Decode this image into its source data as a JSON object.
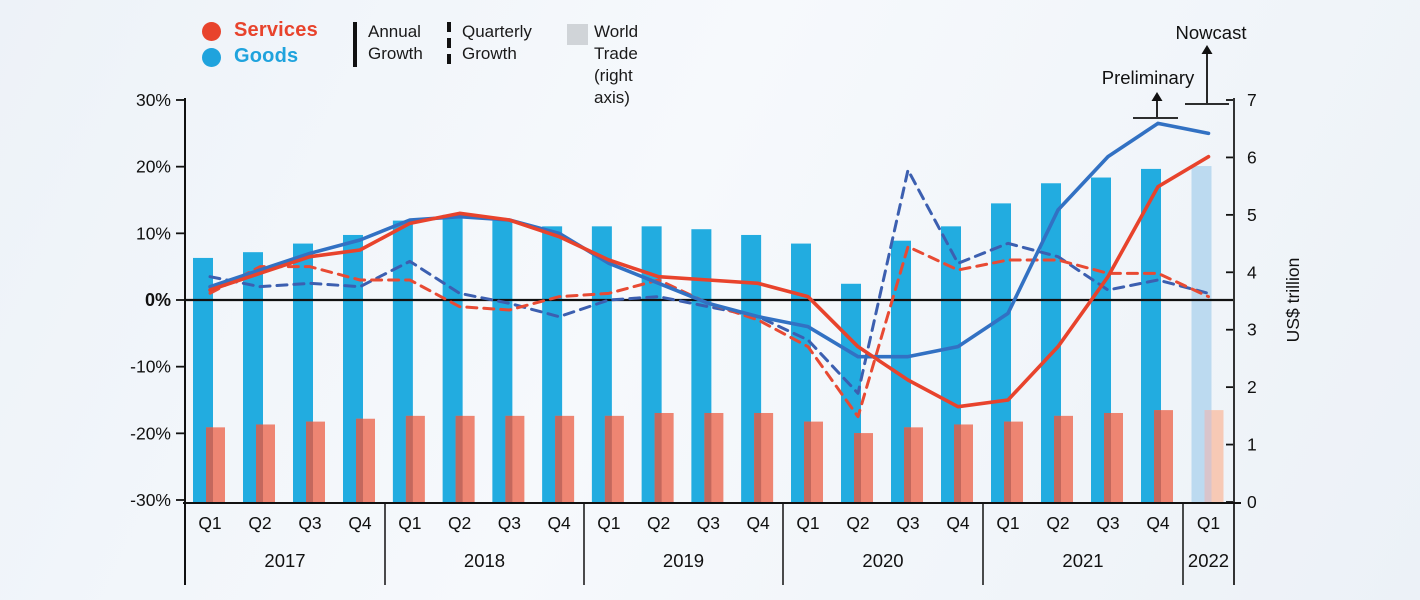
{
  "legend": {
    "services": "Services",
    "goods": "Goods",
    "annual_line1": "Annual",
    "annual_line2": "Growth",
    "quarterly_line1": "Quarterly",
    "quarterly_line2": "Growth",
    "world_line1": "World Trade",
    "world_line2": "(right axis)"
  },
  "annotations": {
    "preliminary": "Preliminary",
    "nowcast": "Nowcast"
  },
  "axes": {
    "left_tick_labels": [
      "30%",
      "20%",
      "10%",
      "0%",
      "-10%",
      "-20%",
      "-30%"
    ],
    "left_tick_values": [
      30,
      20,
      10,
      0,
      -10,
      -20,
      -30
    ],
    "right_tick_labels": [
      "7",
      "6",
      "5",
      "4",
      "3",
      "2",
      "1",
      "0"
    ],
    "right_tick_values": [
      7,
      6,
      5,
      4,
      3,
      2,
      1,
      0
    ],
    "right_axis_title": "US$ trillion"
  },
  "colors": {
    "services_accent": "#e8432c",
    "goods_accent": "#1fa3dd",
    "goods_bar": "#22ace0",
    "services_bar": "#ee8572",
    "bar_overlap": "#c4685d",
    "goods_bar_nowcast": "#bcdaf0",
    "services_bar_nowcast": "#f7c9b5",
    "bar_overlap_nowcast": "#d9c4cb",
    "goods_line": "#3271c3",
    "services_line": "#e8432c",
    "goods_line_dashed": "#3c5fb0",
    "services_line_dashed": "#e84a33",
    "world_trade_swatch": "#d0d4d8",
    "axis": "#111111"
  },
  "chart_data": {
    "type": "bar+line",
    "dual_axis": true,
    "years": [
      {
        "label": "2017",
        "quarters": [
          "Q1",
          "Q2",
          "Q3",
          "Q4"
        ]
      },
      {
        "label": "2018",
        "quarters": [
          "Q1",
          "Q2",
          "Q3",
          "Q4"
        ]
      },
      {
        "label": "2019",
        "quarters": [
          "Q1",
          "Q2",
          "Q3",
          "Q4"
        ]
      },
      {
        "label": "2020",
        "quarters": [
          "Q1",
          "Q2",
          "Q3",
          "Q4"
        ]
      },
      {
        "label": "2021",
        "quarters": [
          "Q1",
          "Q2",
          "Q3",
          "Q4"
        ]
      },
      {
        "label": "2022",
        "quarters": [
          "Q1"
        ]
      }
    ],
    "left_axis": {
      "unit": "%",
      "range": [
        -30,
        30
      ],
      "ticks": [
        30,
        20,
        10,
        0,
        -10,
        -20,
        -30
      ]
    },
    "right_axis": {
      "unit": "US$ trillion",
      "range": [
        0,
        7
      ],
      "ticks": [
        7,
        6,
        5,
        4,
        3,
        2,
        1,
        0
      ]
    },
    "series": [
      {
        "id": "goods_trade",
        "name": "Goods — World Trade (US$ trillion, right axis)",
        "type": "bar",
        "axis": "right",
        "values": [
          4.25,
          4.35,
          4.5,
          4.65,
          4.9,
          5.0,
          4.9,
          4.8,
          4.8,
          4.8,
          4.75,
          4.65,
          4.5,
          3.8,
          4.55,
          4.8,
          5.2,
          5.55,
          5.65,
          5.8,
          5.85
        ]
      },
      {
        "id": "services_trade",
        "name": "Services — World Trade (US$ trillion, right axis)",
        "type": "bar",
        "axis": "right",
        "values": [
          1.3,
          1.35,
          1.4,
          1.45,
          1.5,
          1.5,
          1.5,
          1.5,
          1.5,
          1.55,
          1.55,
          1.55,
          1.4,
          1.2,
          1.3,
          1.35,
          1.4,
          1.5,
          1.55,
          1.6,
          1.6
        ]
      },
      {
        "id": "goods_quarterly",
        "name": "Goods — Quarterly Growth (%)",
        "type": "line",
        "dash": true,
        "axis": "left",
        "values": [
          3.5,
          2,
          2.5,
          2,
          5.8,
          1,
          -0.5,
          -2.5,
          0,
          0.5,
          -1,
          -2.5,
          -6,
          -14,
          19.5,
          5.5,
          8.5,
          6.5,
          1.5,
          3,
          1
        ]
      },
      {
        "id": "services_quarterly",
        "name": "Services — Quarterly Growth (%)",
        "type": "line",
        "dash": true,
        "axis": "left",
        "values": [
          1,
          5,
          5,
          3,
          3,
          -1,
          -1.5,
          0.5,
          1,
          3,
          -0.5,
          -3,
          -7,
          -17.5,
          8,
          4.5,
          6,
          6,
          4,
          4,
          0.5
        ]
      },
      {
        "id": "goods_annual",
        "name": "Goods — Annual Growth (%)",
        "type": "line",
        "dash": false,
        "axis": "left",
        "values": [
          2,
          4.5,
          7,
          9,
          12,
          12.5,
          12,
          10,
          5.5,
          2.5,
          -0.5,
          -2.5,
          -4,
          -8.5,
          -8.5,
          -7,
          -2,
          13.5,
          21.5,
          26.5,
          25
        ]
      },
      {
        "id": "services_annual",
        "name": "Services — Annual Growth (%)",
        "type": "line",
        "dash": false,
        "axis": "left",
        "values": [
          1.5,
          4,
          6.5,
          7.5,
          11.5,
          13,
          12,
          9.5,
          6,
          3.5,
          3,
          2.5,
          0.5,
          -7,
          -12,
          -16,
          -15,
          -7,
          3.5,
          17,
          21.5
        ]
      }
    ],
    "preliminary_index": 19,
    "nowcast_index": 20
  }
}
